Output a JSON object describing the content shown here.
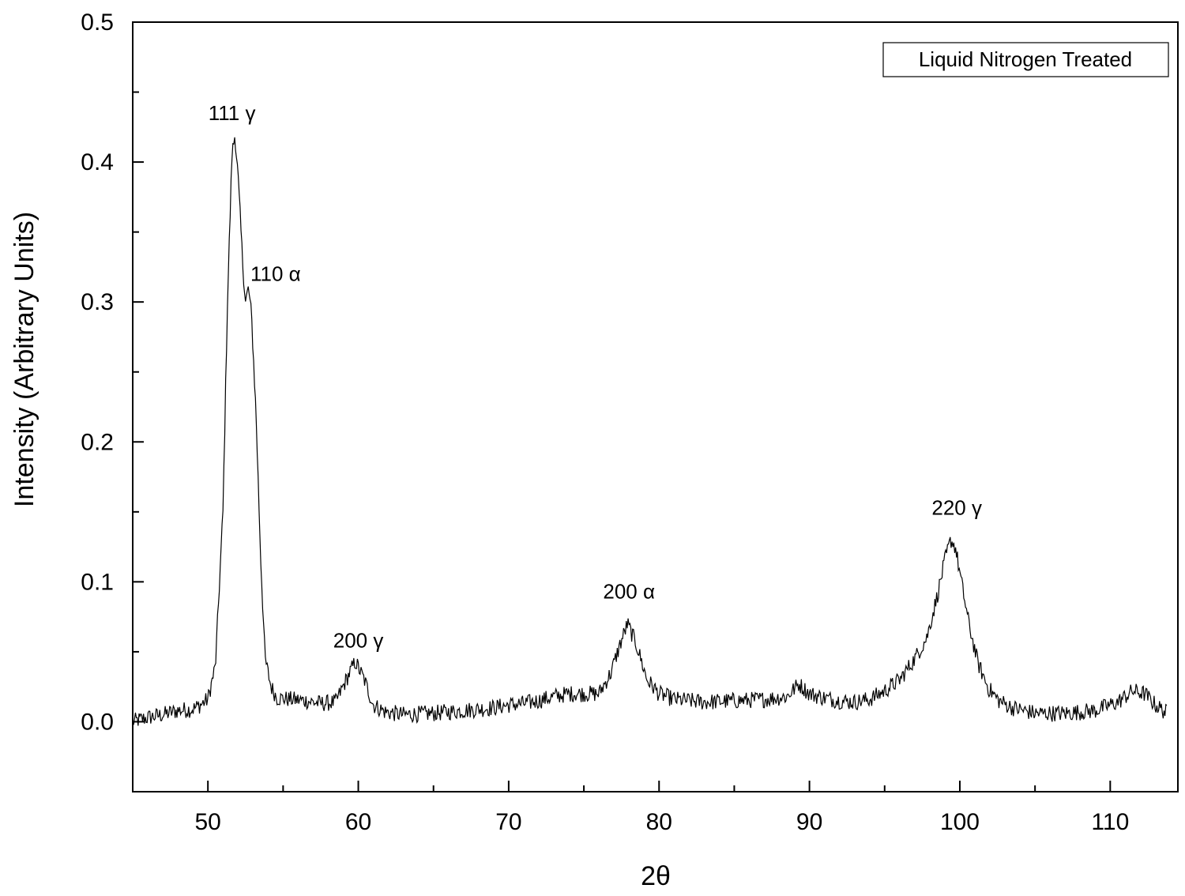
{
  "chart_data": {
    "type": "line",
    "xlabel": "2θ",
    "ylabel": "Intensity (Arbitrary Units)",
    "xlim": [
      45,
      114.5
    ],
    "ylim": [
      -0.05,
      0.5
    ],
    "xticks": [
      50,
      60,
      70,
      80,
      90,
      100,
      110
    ],
    "yticks": [
      0.0,
      0.1,
      0.2,
      0.3,
      0.4,
      0.5
    ],
    "xtick_labels": [
      "50",
      "60",
      "70",
      "80",
      "90",
      "100",
      "110"
    ],
    "ytick_labels": [
      "0.0",
      "0.1",
      "0.2",
      "0.3",
      "0.4",
      "0.5"
    ],
    "grid": false,
    "legend": {
      "text": "Liquid Nitrogen Treated",
      "placement": "top-right"
    },
    "series": [
      {
        "name": "Liquid Nitrogen Treated",
        "color": "#000000",
        "x": [
          45,
          46,
          47,
          48,
          49,
          49.5,
          50,
          50.5,
          51,
          51.3,
          51.6,
          51.8,
          52.0,
          52.3,
          52.5,
          52.7,
          52.9,
          53.2,
          53.5,
          53.8,
          54.2,
          54.6,
          55.5,
          56.5,
          57.5,
          58.5,
          59.2,
          59.8,
          60.4,
          61.0,
          61.8,
          63,
          65,
          67,
          69,
          70,
          71,
          72,
          73,
          74,
          75,
          76,
          76.8,
          77.4,
          77.9,
          78.5,
          79.2,
          80,
          81,
          83,
          85,
          87,
          88.5,
          89.3,
          90,
          91,
          92,
          93,
          94,
          95,
          96,
          97,
          97.8,
          98.5,
          99.0,
          99.4,
          99.7,
          100.1,
          100.6,
          101.2,
          101.9,
          102.6,
          103.5,
          105,
          107,
          109,
          110.5,
          111.5,
          112.3,
          113,
          113.8
        ],
        "y": [
          0.0,
          0.003,
          0.005,
          0.008,
          0.009,
          0.012,
          0.016,
          0.04,
          0.15,
          0.3,
          0.405,
          0.42,
          0.39,
          0.33,
          0.3,
          0.31,
          0.29,
          0.22,
          0.12,
          0.045,
          0.025,
          0.017,
          0.016,
          0.015,
          0.013,
          0.014,
          0.03,
          0.043,
          0.03,
          0.012,
          0.007,
          0.005,
          0.006,
          0.008,
          0.01,
          0.012,
          0.013,
          0.015,
          0.018,
          0.02,
          0.02,
          0.02,
          0.035,
          0.055,
          0.07,
          0.055,
          0.03,
          0.02,
          0.016,
          0.014,
          0.015,
          0.016,
          0.018,
          0.027,
          0.02,
          0.017,
          0.015,
          0.014,
          0.016,
          0.022,
          0.03,
          0.045,
          0.06,
          0.09,
          0.115,
          0.13,
          0.125,
          0.1,
          0.07,
          0.042,
          0.024,
          0.015,
          0.01,
          0.006,
          0.006,
          0.008,
          0.014,
          0.022,
          0.02,
          0.012,
          0.006
        ]
      }
    ],
    "annotations": [
      {
        "text": "111 γ",
        "x": 51.6,
        "y": 0.43
      },
      {
        "text": "110 α",
        "x": 54.5,
        "y": 0.315
      },
      {
        "text": "200 γ",
        "x": 60.0,
        "y": 0.053
      },
      {
        "text": "200 α",
        "x": 78.0,
        "y": 0.088
      },
      {
        "text": "220 γ",
        "x": 99.8,
        "y": 0.148
      }
    ]
  }
}
